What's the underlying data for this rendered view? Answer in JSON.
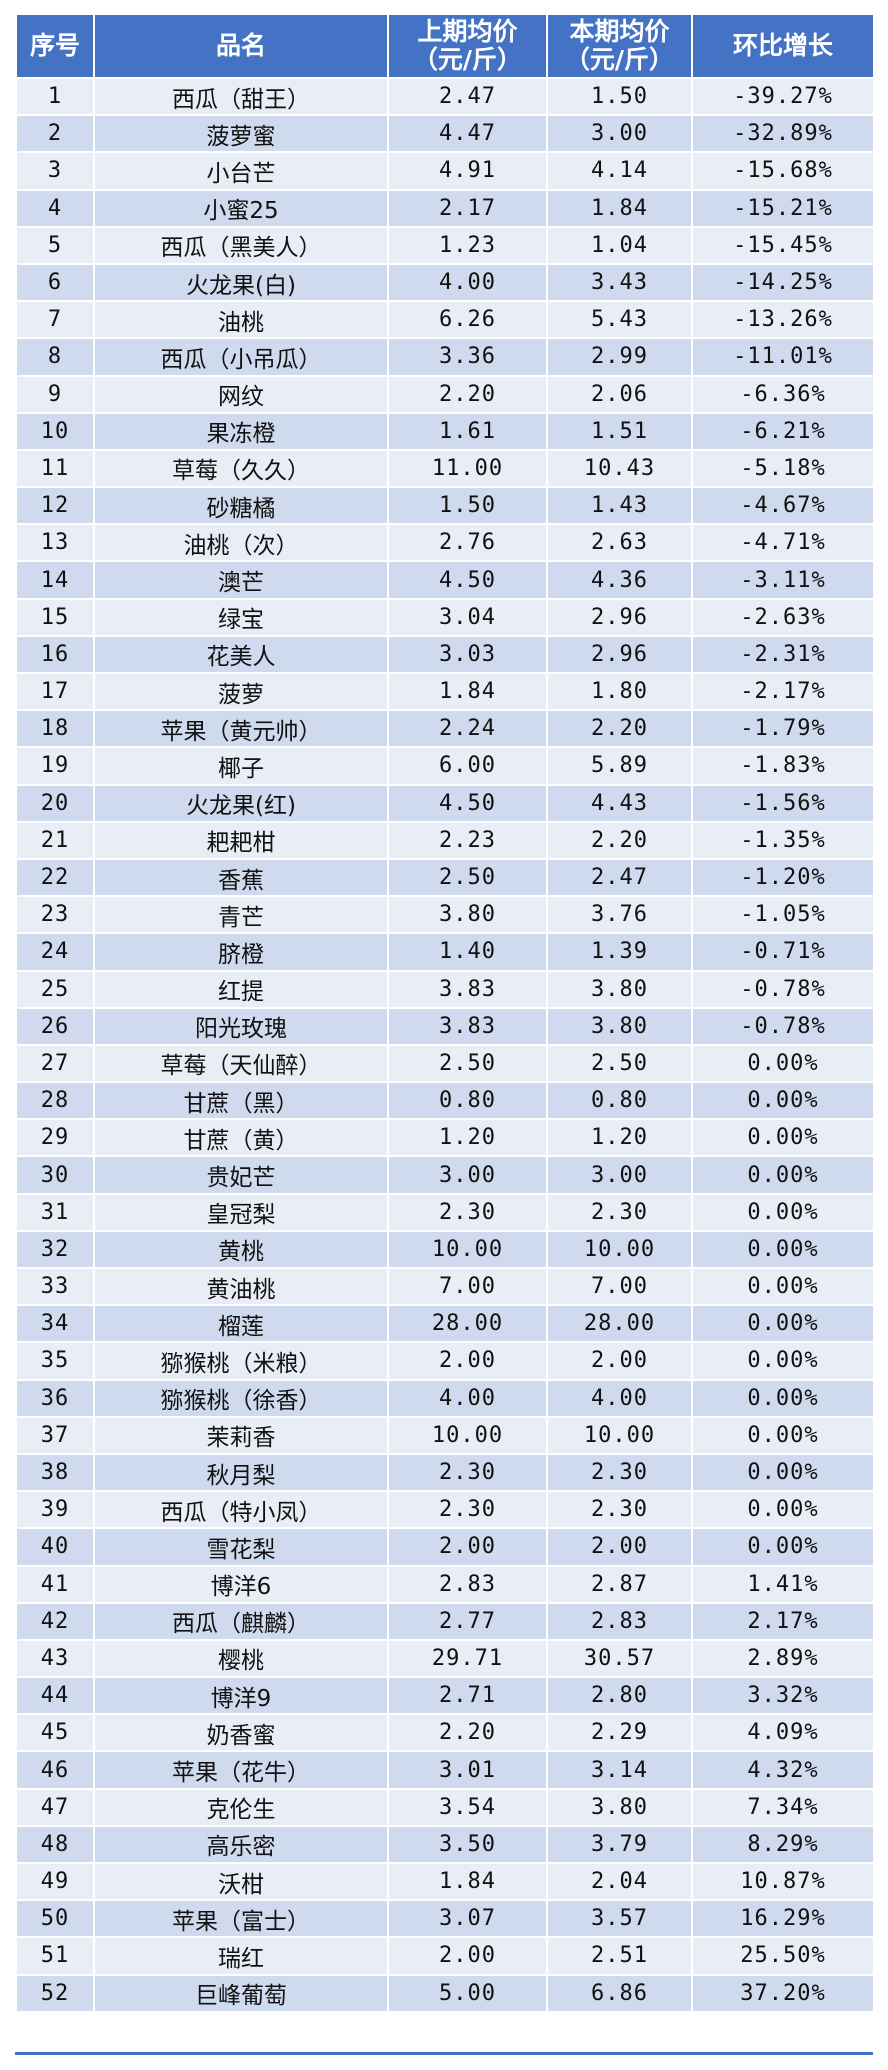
{
  "table": {
    "headers": [
      "序号",
      "品名",
      "上期均价\n（元/斤）",
      "本期均价\n（元/斤）",
      "环比增长"
    ],
    "rows": [
      [
        "1",
        "西瓜（甜王）",
        "2.47",
        "1.50",
        "-39.27%"
      ],
      [
        "2",
        "菠萝蜜",
        "4.47",
        "3.00",
        "-32.89%"
      ],
      [
        "3",
        "小台芒",
        "4.91",
        "4.14",
        "-15.68%"
      ],
      [
        "4",
        "小蜜25",
        "2.17",
        "1.84",
        "-15.21%"
      ],
      [
        "5",
        "西瓜（黑美人）",
        "1.23",
        "1.04",
        "-15.45%"
      ],
      [
        "6",
        "火龙果(白)",
        "4.00",
        "3.43",
        "-14.25%"
      ],
      [
        "7",
        "油桃",
        "6.26",
        "5.43",
        "-13.26%"
      ],
      [
        "8",
        "西瓜（小吊瓜）",
        "3.36",
        "2.99",
        "-11.01%"
      ],
      [
        "9",
        "网纹",
        "2.20",
        "2.06",
        "-6.36%"
      ],
      [
        "10",
        "果冻橙",
        "1.61",
        "1.51",
        "-6.21%"
      ],
      [
        "11",
        "草莓（久久）",
        "11.00",
        "10.43",
        "-5.18%"
      ],
      [
        "12",
        "砂糖橘",
        "1.50",
        "1.43",
        "-4.67%"
      ],
      [
        "13",
        "油桃（次）",
        "2.76",
        "2.63",
        "-4.71%"
      ],
      [
        "14",
        "澳芒",
        "4.50",
        "4.36",
        "-3.11%"
      ],
      [
        "15",
        "绿宝",
        "3.04",
        "2.96",
        "-2.63%"
      ],
      [
        "16",
        "花美人",
        "3.03",
        "2.96",
        "-2.31%"
      ],
      [
        "17",
        "菠萝",
        "1.84",
        "1.80",
        "-2.17%"
      ],
      [
        "18",
        "苹果（黄元帅）",
        "2.24",
        "2.20",
        "-1.79%"
      ],
      [
        "19",
        "椰子",
        "6.00",
        "5.89",
        "-1.83%"
      ],
      [
        "20",
        "火龙果(红)",
        "4.50",
        "4.43",
        "-1.56%"
      ],
      [
        "21",
        "耙耙柑",
        "2.23",
        "2.20",
        "-1.35%"
      ],
      [
        "22",
        "香蕉",
        "2.50",
        "2.47",
        "-1.20%"
      ],
      [
        "23",
        "青芒",
        "3.80",
        "3.76",
        "-1.05%"
      ],
      [
        "24",
        "脐橙",
        "1.40",
        "1.39",
        "-0.71%"
      ],
      [
        "25",
        "红提",
        "3.83",
        "3.80",
        "-0.78%"
      ],
      [
        "26",
        "阳光玫瑰",
        "3.83",
        "3.80",
        "-0.78%"
      ],
      [
        "27",
        "草莓（天仙醉）",
        "2.50",
        "2.50",
        "0.00%"
      ],
      [
        "28",
        "甘蔗（黑）",
        "0.80",
        "0.80",
        "0.00%"
      ],
      [
        "29",
        "甘蔗（黄）",
        "1.20",
        "1.20",
        "0.00%"
      ],
      [
        "30",
        "贵妃芒",
        "3.00",
        "3.00",
        "0.00%"
      ],
      [
        "31",
        "皇冠梨",
        "2.30",
        "2.30",
        "0.00%"
      ],
      [
        "32",
        "黄桃",
        "10.00",
        "10.00",
        "0.00%"
      ],
      [
        "33",
        "黄油桃",
        "7.00",
        "7.00",
        "0.00%"
      ],
      [
        "34",
        "榴莲",
        "28.00",
        "28.00",
        "0.00%"
      ],
      [
        "35",
        "猕猴桃（米粮）",
        "2.00",
        "2.00",
        "0.00%"
      ],
      [
        "36",
        "猕猴桃（徐香）",
        "4.00",
        "4.00",
        "0.00%"
      ],
      [
        "37",
        "茉莉香",
        "10.00",
        "10.00",
        "0.00%"
      ],
      [
        "38",
        "秋月梨",
        "2.30",
        "2.30",
        "0.00%"
      ],
      [
        "39",
        "西瓜（特小凤）",
        "2.30",
        "2.30",
        "0.00%"
      ],
      [
        "40",
        "雪花梨",
        "2.00",
        "2.00",
        "0.00%"
      ],
      [
        "41",
        "博洋6",
        "2.83",
        "2.87",
        "1.41%"
      ],
      [
        "42",
        "西瓜（麒麟）",
        "2.77",
        "2.83",
        "2.17%"
      ],
      [
        "43",
        "樱桃",
        "29.71",
        "30.57",
        "2.89%"
      ],
      [
        "44",
        "博洋9",
        "2.71",
        "2.80",
        "3.32%"
      ],
      [
        "45",
        "奶香蜜",
        "2.20",
        "2.29",
        "4.09%"
      ],
      [
        "46",
        "苹果（花牛）",
        "3.01",
        "3.14",
        "4.32%"
      ],
      [
        "47",
        "克伦生",
        "3.54",
        "3.80",
        "7.34%"
      ],
      [
        "48",
        "高乐密",
        "3.50",
        "3.79",
        "8.29%"
      ],
      [
        "49",
        "沃柑",
        "1.84",
        "2.04",
        "10.87%"
      ],
      [
        "50",
        "苹果（富士）",
        "3.07",
        "3.57",
        "16.29%"
      ],
      [
        "51",
        "瑞红",
        "2.00",
        "2.51",
        "25.50%"
      ],
      [
        "52",
        "巨峰葡萄",
        "5.00",
        "6.86",
        "37.20%"
      ]
    ]
  },
  "colors": {
    "header_bg": "#4472c4",
    "header_text": "#ffffff",
    "row_light": "#e9edf6",
    "row_dark": "#d0daee"
  }
}
